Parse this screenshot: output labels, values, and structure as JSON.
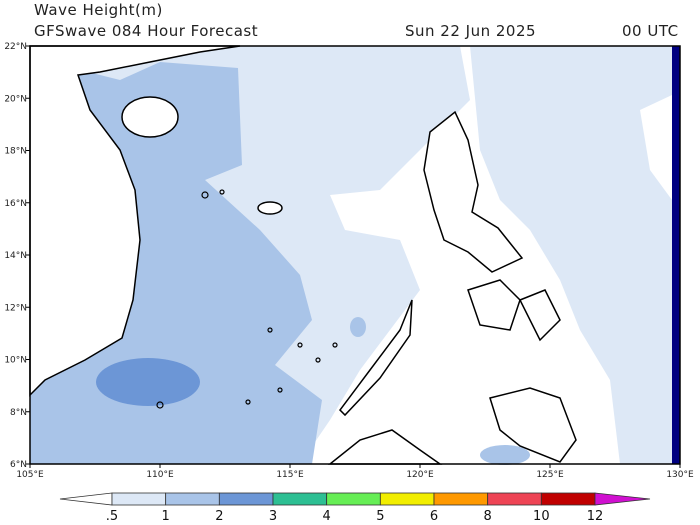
{
  "header": {
    "title": "Wave Height(m)",
    "subtitle": "GFSwave 084 Hour Forecast",
    "date": "Sun 22 Jun 2025",
    "time": "00 UTC"
  },
  "map": {
    "lat_labels": [
      "22°N",
      "20°N",
      "18°N",
      "16°N",
      "14°N",
      "12°N",
      "10°N",
      "8°N",
      "6°N"
    ],
    "lon_labels": [
      "105°E",
      "110°E",
      "115°E",
      "120°E",
      "125°E",
      "130°E"
    ]
  },
  "colorbar": {
    "labels": [
      ".5",
      "1",
      "2",
      "3",
      "4",
      "5",
      "6",
      "8",
      "10",
      "12"
    ],
    "colors": [
      "#ffffff",
      "#dde8f6",
      "#a9c4e8",
      "#6c96d6",
      "#2dbf93",
      "#66ee55",
      "#f2ee00",
      "#ff9900",
      "#ee4455",
      "#c00000",
      "#d010d0"
    ]
  }
}
